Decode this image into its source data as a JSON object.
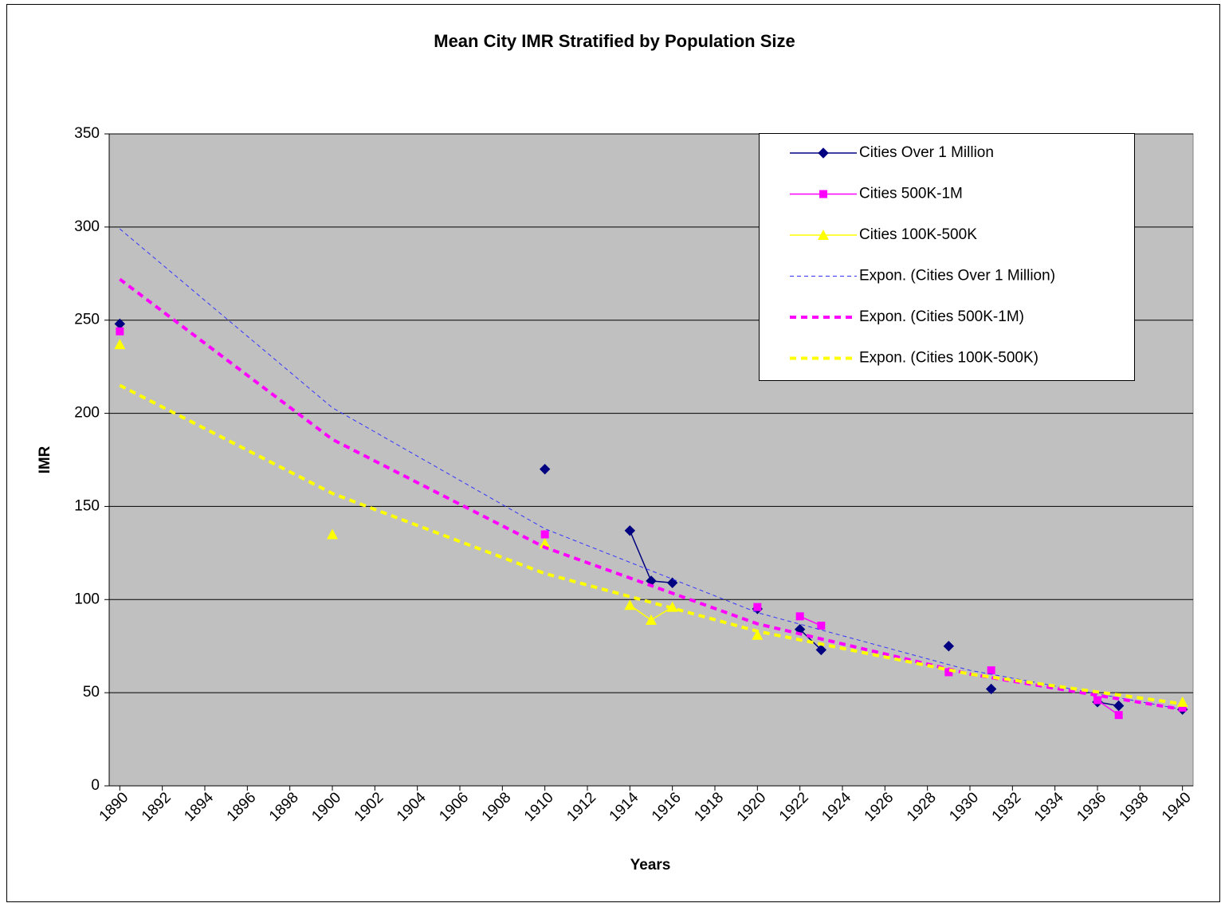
{
  "chart_data": {
    "type": "line",
    "title": "Mean City IMR Stratified by Population Size",
    "x_label": "Years",
    "y_label": "IMR",
    "x": [
      1890,
      1891,
      1892,
      1893,
      1894,
      1895,
      1896,
      1897,
      1898,
      1899,
      1900,
      1901,
      1902,
      1903,
      1904,
      1905,
      1906,
      1907,
      1908,
      1909,
      1910,
      1911,
      1912,
      1913,
      1914,
      1915,
      1916,
      1917,
      1918,
      1919,
      1920,
      1921,
      1922,
      1923,
      1924,
      1925,
      1926,
      1927,
      1928,
      1929,
      1930,
      1931,
      1932,
      1933,
      1934,
      1935,
      1936,
      1937,
      1938,
      1939,
      1940
    ],
    "xlim": [
      1889.5,
      1940.5
    ],
    "xticks": [
      1890,
      1892,
      1894,
      1896,
      1898,
      1900,
      1902,
      1904,
      1906,
      1908,
      1910,
      1912,
      1914,
      1916,
      1918,
      1920,
      1922,
      1924,
      1926,
      1928,
      1930,
      1932,
      1934,
      1936,
      1938,
      1940
    ],
    "ylim": [
      0,
      350
    ],
    "yticks": [
      0,
      50,
      100,
      150,
      200,
      250,
      300,
      350
    ],
    "grid": true,
    "legend": "top-right",
    "series": [
      {
        "name": "Cities Over 1 Million",
        "color": "#000080",
        "marker": "diamond",
        "values": [
          248,
          null,
          null,
          null,
          null,
          null,
          null,
          null,
          null,
          null,
          null,
          null,
          null,
          null,
          null,
          null,
          null,
          null,
          null,
          null,
          170,
          null,
          null,
          null,
          137,
          110,
          109,
          null,
          null,
          null,
          95,
          null,
          84,
          73,
          null,
          null,
          null,
          null,
          null,
          75,
          null,
          52,
          null,
          null,
          null,
          null,
          45,
          43,
          null,
          null,
          41
        ]
      },
      {
        "name": "Cities 500K-1M",
        "color": "#ff00ff",
        "marker": "square",
        "values": [
          244,
          null,
          null,
          null,
          null,
          null,
          null,
          null,
          null,
          null,
          null,
          null,
          null,
          null,
          null,
          null,
          null,
          null,
          null,
          null,
          135,
          null,
          null,
          null,
          null,
          null,
          null,
          null,
          null,
          null,
          96,
          null,
          91,
          86,
          null,
          null,
          null,
          null,
          null,
          61,
          null,
          62,
          null,
          null,
          null,
          null,
          46,
          38,
          null,
          null,
          42
        ]
      },
      {
        "name": "Cities 100K-500K",
        "color": "#ffff00",
        "marker": "triangle",
        "values": [
          237,
          null,
          null,
          null,
          null,
          null,
          null,
          null,
          null,
          null,
          135,
          null,
          null,
          null,
          null,
          null,
          null,
          null,
          null,
          null,
          130,
          null,
          null,
          null,
          97,
          89,
          96,
          null,
          null,
          null,
          81,
          null,
          null,
          null,
          null,
          null,
          null,
          null,
          null,
          null,
          null,
          null,
          null,
          null,
          null,
          null,
          null,
          null,
          null,
          null,
          45
        ]
      },
      {
        "name": "Expon. (Cities Over 1 Million)",
        "color": "#3333ff",
        "trendline": true,
        "dash": "thin",
        "x": [
          1890,
          1900,
          1910,
          1920,
          1930,
          1940
        ],
        "values": [
          299,
          203,
          138,
          93,
          62,
          41
        ]
      },
      {
        "name": "Expon. (Cities 500K-1M)",
        "color": "#ff00ff",
        "trendline": true,
        "dash": "thick",
        "x": [
          1890,
          1900,
          1910,
          1920,
          1930,
          1940
        ],
        "values": [
          272,
          186,
          128,
          87,
          60,
          41
        ]
      },
      {
        "name": "Expon. (Cities 100K-500K)",
        "color": "#ffff00",
        "trendline": true,
        "dash": "thick",
        "x": [
          1890,
          1900,
          1910,
          1920,
          1930,
          1940
        ],
        "values": [
          215,
          157,
          114,
          83,
          60,
          44
        ]
      }
    ]
  }
}
